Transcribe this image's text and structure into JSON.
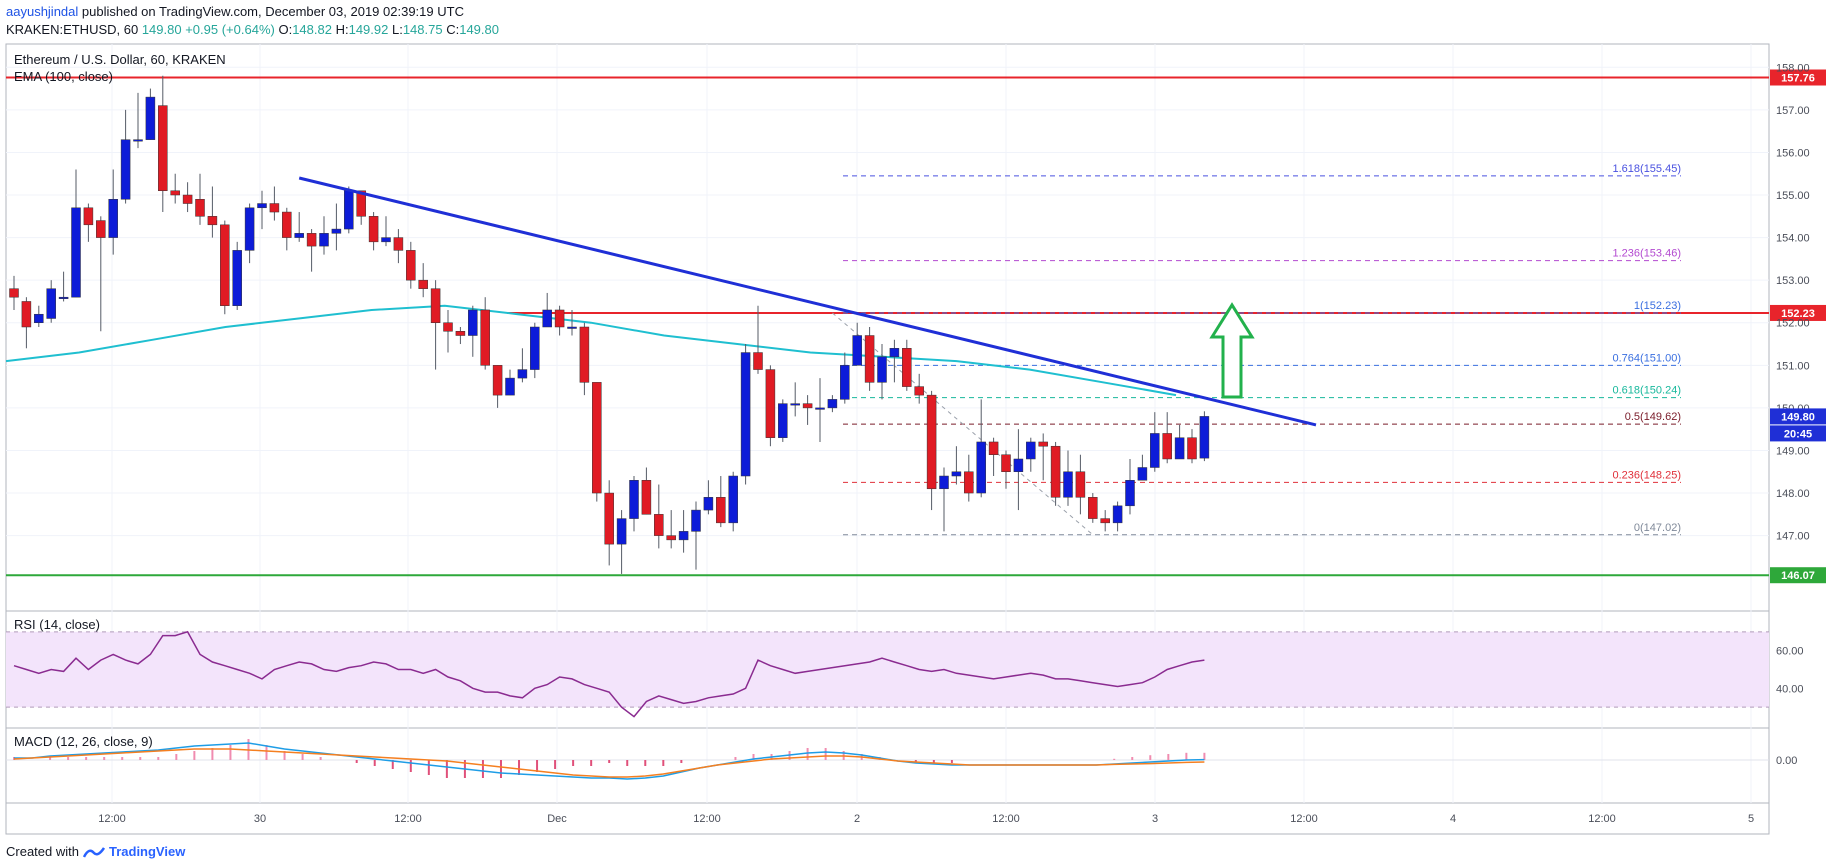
{
  "header": {
    "author": "aayushjindal",
    "published_text": "published on TradingView.com, December 03, 2019 02:39:19 UTC",
    "symbol_line": "KRAKEN:ETHUSD, 60",
    "last": "149.80",
    "change": "+0.95 (+0.64%)",
    "o_label": "O:",
    "o": "148.82",
    "h_label": "H:",
    "h": "149.92",
    "l_label": "L:",
    "l": "148.75",
    "c_label": "C:",
    "c": "149.80"
  },
  "footer": {
    "created_with": "Created with",
    "brand": "TradingView"
  },
  "colors": {
    "up": "#0d1cd8",
    "down": "#e01b24",
    "ema": "#1fbfd0",
    "trendline": "#1f2fd6",
    "resistance": "#e8242b",
    "support": "#2ea83a",
    "rsi_band": "#f3e4fb",
    "rsi_line": "#8a2b90",
    "macd": "#1e9de6",
    "signal": "#f57f20",
    "arrow": "#22b14c"
  },
  "chart_data": [
    {
      "type": "candlestick",
      "title": "Ethereum / U.S. Dollar, 60, KRAKEN",
      "indicator_label": "EMA (100, close)",
      "ylim": [
        145.3,
        158.5
      ],
      "y_ticks": [
        "147.00",
        "148.00",
        "149.00",
        "150.00",
        "151.00",
        "152.00",
        "153.00",
        "154.00",
        "155.00",
        "156.00",
        "157.00",
        "158.00"
      ],
      "x_tick_labels": [
        "12:00",
        "30",
        "12:00",
        "Dec",
        "12:00",
        "2",
        "12:00",
        "3",
        "12:00",
        "4",
        "12:00",
        "5"
      ],
      "candles": [
        [
          152.8,
          152.6,
          153.1,
          152.3
        ],
        [
          152.5,
          151.9,
          152.6,
          151.4
        ],
        [
          152.0,
          152.2,
          152.4,
          151.9
        ],
        [
          152.1,
          152.8,
          153.0,
          152.0
        ],
        [
          152.6,
          152.6,
          153.2,
          152.5
        ],
        [
          152.6,
          154.7,
          155.6,
          152.6
        ],
        [
          154.7,
          154.3,
          154.8,
          153.9
        ],
        [
          154.4,
          154.0,
          154.5,
          151.8
        ],
        [
          154.0,
          154.9,
          155.6,
          153.6
        ],
        [
          154.9,
          156.3,
          157.0,
          154.8
        ],
        [
          156.3,
          156.3,
          157.4,
          156.1
        ],
        [
          156.3,
          157.3,
          157.5,
          156.3
        ],
        [
          157.1,
          155.1,
          157.8,
          154.6
        ],
        [
          155.1,
          155.0,
          155.5,
          154.8
        ],
        [
          155.0,
          154.8,
          155.3,
          154.6
        ],
        [
          154.9,
          154.5,
          155.5,
          154.3
        ],
        [
          154.5,
          154.3,
          155.2,
          154.0
        ],
        [
          154.3,
          152.4,
          154.4,
          152.2
        ],
        [
          152.4,
          153.7,
          153.9,
          152.3
        ],
        [
          153.7,
          154.7,
          154.8,
          153.4
        ],
        [
          154.7,
          154.8,
          155.1,
          154.2
        ],
        [
          154.8,
          154.6,
          155.2,
          154.4
        ],
        [
          154.6,
          154.0,
          154.7,
          153.7
        ],
        [
          154.0,
          154.1,
          154.6,
          153.9
        ],
        [
          154.1,
          153.8,
          154.2,
          153.2
        ],
        [
          153.8,
          154.1,
          154.5,
          153.6
        ],
        [
          154.1,
          154.2,
          154.8,
          153.7
        ],
        [
          154.2,
          155.1,
          155.2,
          154.1
        ],
        [
          155.1,
          154.5,
          155.1,
          154.3
        ],
        [
          154.5,
          153.9,
          154.6,
          153.7
        ],
        [
          153.9,
          154.0,
          154.5,
          153.8
        ],
        [
          154.0,
          153.7,
          154.2,
          153.4
        ],
        [
          153.7,
          153.0,
          153.9,
          152.8
        ],
        [
          153.0,
          152.8,
          153.4,
          152.6
        ],
        [
          152.8,
          152.0,
          153.0,
          150.9
        ],
        [
          152.0,
          151.8,
          152.3,
          151.3
        ],
        [
          151.8,
          151.7,
          151.9,
          151.5
        ],
        [
          151.7,
          152.3,
          152.4,
          151.2
        ],
        [
          152.3,
          151.0,
          152.6,
          150.9
        ],
        [
          151.0,
          150.3,
          151.0,
          150.0
        ],
        [
          150.3,
          150.7,
          150.9,
          150.3
        ],
        [
          150.7,
          150.9,
          151.4,
          150.6
        ],
        [
          150.9,
          151.9,
          152.0,
          150.7
        ],
        [
          151.9,
          152.3,
          152.7,
          151.9
        ],
        [
          152.3,
          151.9,
          152.4,
          151.7
        ],
        [
          151.9,
          151.9,
          152.3,
          151.7
        ],
        [
          151.9,
          150.6,
          152.0,
          150.3
        ],
        [
          150.6,
          148.0,
          150.6,
          147.8
        ],
        [
          148.0,
          146.8,
          148.3,
          146.3
        ],
        [
          146.8,
          147.4,
          147.6,
          146.1
        ],
        [
          147.4,
          148.3,
          148.4,
          147.1
        ],
        [
          148.3,
          147.5,
          148.6,
          147.5
        ],
        [
          147.5,
          147.0,
          148.2,
          146.7
        ],
        [
          147.0,
          146.9,
          147.6,
          146.7
        ],
        [
          146.9,
          147.1,
          147.6,
          146.6
        ],
        [
          147.1,
          147.6,
          147.8,
          146.2
        ],
        [
          147.6,
          147.9,
          148.3,
          147.5
        ],
        [
          147.9,
          147.3,
          148.4,
          147.2
        ],
        [
          147.3,
          148.4,
          148.5,
          147.1
        ],
        [
          148.4,
          151.3,
          151.5,
          148.2
        ],
        [
          151.3,
          150.9,
          152.4,
          150.8
        ],
        [
          150.9,
          149.3,
          151.0,
          149.1
        ],
        [
          149.3,
          150.1,
          150.2,
          149.2
        ],
        [
          150.1,
          150.1,
          150.6,
          149.8
        ],
        [
          150.1,
          150.0,
          150.3,
          149.6
        ],
        [
          150.0,
          150.0,
          150.7,
          149.2
        ],
        [
          150.0,
          150.2,
          150.3,
          149.9
        ],
        [
          150.2,
          151.0,
          151.3,
          150.1
        ],
        [
          151.0,
          151.7,
          152.0,
          151.0
        ],
        [
          151.7,
          150.6,
          151.9,
          150.4
        ],
        [
          150.6,
          151.2,
          151.5,
          150.2
        ],
        [
          151.2,
          151.4,
          151.6,
          150.6
        ],
        [
          151.4,
          150.5,
          151.6,
          150.4
        ],
        [
          150.5,
          150.3,
          150.8,
          150.1
        ],
        [
          150.3,
          148.1,
          150.4,
          147.6
        ],
        [
          148.1,
          148.4,
          148.6,
          147.1
        ],
        [
          148.4,
          148.5,
          149.1,
          148.2
        ],
        [
          148.5,
          148.0,
          148.9,
          147.8
        ],
        [
          148.0,
          149.2,
          150.2,
          147.9
        ],
        [
          149.2,
          148.9,
          149.3,
          148.4
        ],
        [
          148.9,
          148.5,
          149.0,
          148.1
        ],
        [
          148.5,
          148.8,
          149.5,
          147.6
        ],
        [
          148.8,
          149.2,
          149.3,
          148.5
        ],
        [
          149.2,
          149.1,
          149.4,
          148.3
        ],
        [
          149.1,
          147.9,
          149.2,
          147.7
        ],
        [
          147.9,
          148.5,
          149.0,
          147.7
        ],
        [
          148.5,
          147.9,
          148.9,
          147.5
        ],
        [
          147.9,
          147.4,
          148.0,
          147.3
        ],
        [
          147.4,
          147.3,
          147.6,
          147.1
        ],
        [
          147.3,
          147.7,
          147.8,
          147.1
        ],
        [
          147.7,
          148.3,
          148.8,
          147.5
        ],
        [
          148.3,
          148.6,
          148.9,
          148.3
        ],
        [
          148.6,
          149.4,
          149.9,
          148.5
        ],
        [
          149.4,
          148.8,
          149.9,
          148.7
        ],
        [
          148.8,
          149.3,
          149.6,
          148.8
        ],
        [
          149.3,
          148.8,
          149.5,
          148.7
        ],
        [
          148.82,
          149.8,
          149.92,
          148.75
        ]
      ],
      "ema": [
        151.1,
        151.3,
        151.6,
        151.9,
        152.1,
        152.3,
        152.4,
        152.2,
        152.0,
        151.7,
        151.5,
        151.3,
        151.2,
        151.1,
        150.9,
        150.6,
        150.3
      ],
      "trendline": {
        "from": [
          23,
          155.4
        ],
        "to": [
          105,
          149.6
        ]
      },
      "horizontal_levels": [
        {
          "value": 157.76,
          "label": "157.76",
          "color": "resistance"
        },
        {
          "value": 152.23,
          "label": "152.23",
          "color": "resistance"
        },
        {
          "value": 146.07,
          "label": "146.07",
          "color": "support"
        }
      ],
      "fib_levels": [
        {
          "ratio": "1.618",
          "value": 155.45,
          "label": "1.618(155.45)",
          "color": "#4a52e0"
        },
        {
          "ratio": "1.236",
          "value": 153.46,
          "label": "1.236(153.46)",
          "color": "#b34ad0"
        },
        {
          "ratio": "1",
          "value": 152.23,
          "label": "1(152.23)",
          "color": "#3a6fe0"
        },
        {
          "ratio": "0.764",
          "value": 151.0,
          "label": "0.764(151.00)",
          "color": "#3a6fe0"
        },
        {
          "ratio": "0.618",
          "value": 150.24,
          "label": "0.618(150.24)",
          "color": "#17b89c"
        },
        {
          "ratio": "0.5",
          "value": 149.62,
          "label": "0.5(149.62)",
          "color": "#7a1c2a"
        },
        {
          "ratio": "0.236",
          "value": 148.25,
          "label": "0.236(148.25)",
          "color": "#e0303a"
        },
        {
          "ratio": "0",
          "value": 147.02,
          "label": "0(147.02)",
          "color": "#808a9a"
        }
      ],
      "price_badge": "149.80",
      "countdown_badge": "20:45"
    },
    {
      "type": "line",
      "title": "RSI (14, close)",
      "ylim": [
        20,
        80
      ],
      "band": [
        30,
        70
      ],
      "y_ticks": [
        "40.00",
        "60.00"
      ],
      "values": [
        52,
        50,
        48,
        50,
        49,
        56,
        50,
        55,
        58,
        55,
        53,
        58,
        68,
        68,
        70,
        58,
        54,
        52,
        50,
        48,
        45,
        50,
        52,
        54,
        53,
        50,
        49,
        51,
        52,
        54,
        53,
        50,
        50,
        48,
        50,
        46,
        44,
        40,
        38,
        38,
        36,
        35,
        40,
        42,
        46,
        45,
        42,
        40,
        38,
        30,
        25,
        33,
        36,
        34,
        32,
        33,
        35,
        36,
        37,
        40,
        55,
        52,
        50,
        48,
        49,
        50,
        51,
        52,
        53,
        54,
        56,
        54,
        52,
        50,
        49,
        50,
        48,
        47,
        46,
        45,
        46,
        47,
        48,
        47,
        45,
        45,
        44,
        43,
        42,
        41,
        42,
        43,
        46,
        50,
        52,
        54,
        55
      ]
    },
    {
      "type": "line",
      "title": "MACD (12, 26, close, 9)",
      "y_ticks": [
        "0.00"
      ],
      "macd": [
        0.1,
        0.1,
        0.2,
        0.25,
        0.3,
        0.35,
        0.4,
        0.45,
        0.5,
        0.6,
        0.7,
        0.75,
        0.8,
        0.85,
        0.7,
        0.55,
        0.45,
        0.35,
        0.25,
        0.15,
        0.05,
        -0.05,
        -0.15,
        -0.25,
        -0.35,
        -0.45,
        -0.55,
        -0.65,
        -0.7,
        -0.75,
        -0.8,
        -0.85,
        -0.9,
        -0.9,
        -0.95,
        -0.9,
        -0.8,
        -0.6,
        -0.4,
        -0.25,
        -0.1,
        0.05,
        0.15,
        0.25,
        0.35,
        0.4,
        0.35,
        0.25,
        0.1,
        -0.05,
        -0.15,
        -0.2,
        -0.25,
        -0.25,
        -0.25,
        -0.25,
        -0.25,
        -0.25,
        -0.25,
        -0.25,
        -0.25,
        -0.2,
        -0.15,
        -0.1,
        -0.05,
        0.0,
        0.02
      ],
      "signal": [
        0.05,
        0.1,
        0.15,
        0.2,
        0.25,
        0.3,
        0.35,
        0.4,
        0.45,
        0.5,
        0.55,
        0.55,
        0.55,
        0.5,
        0.45,
        0.4,
        0.35,
        0.3,
        0.25,
        0.2,
        0.15,
        0.1,
        0.05,
        0.0,
        -0.05,
        -0.15,
        -0.25,
        -0.35,
        -0.45,
        -0.55,
        -0.65,
        -0.75,
        -0.8,
        -0.85,
        -0.85,
        -0.8,
        -0.7,
        -0.55,
        -0.4,
        -0.25,
        -0.15,
        -0.05,
        0.05,
        0.1,
        0.15,
        0.2,
        0.2,
        0.15,
        0.05,
        -0.05,
        -0.1,
        -0.15,
        -0.2,
        -0.25,
        -0.25,
        -0.25,
        -0.25,
        -0.25,
        -0.25,
        -0.25,
        -0.25,
        -0.22,
        -0.2,
        -0.18,
        -0.15,
        -0.12,
        -0.1
      ]
    }
  ]
}
